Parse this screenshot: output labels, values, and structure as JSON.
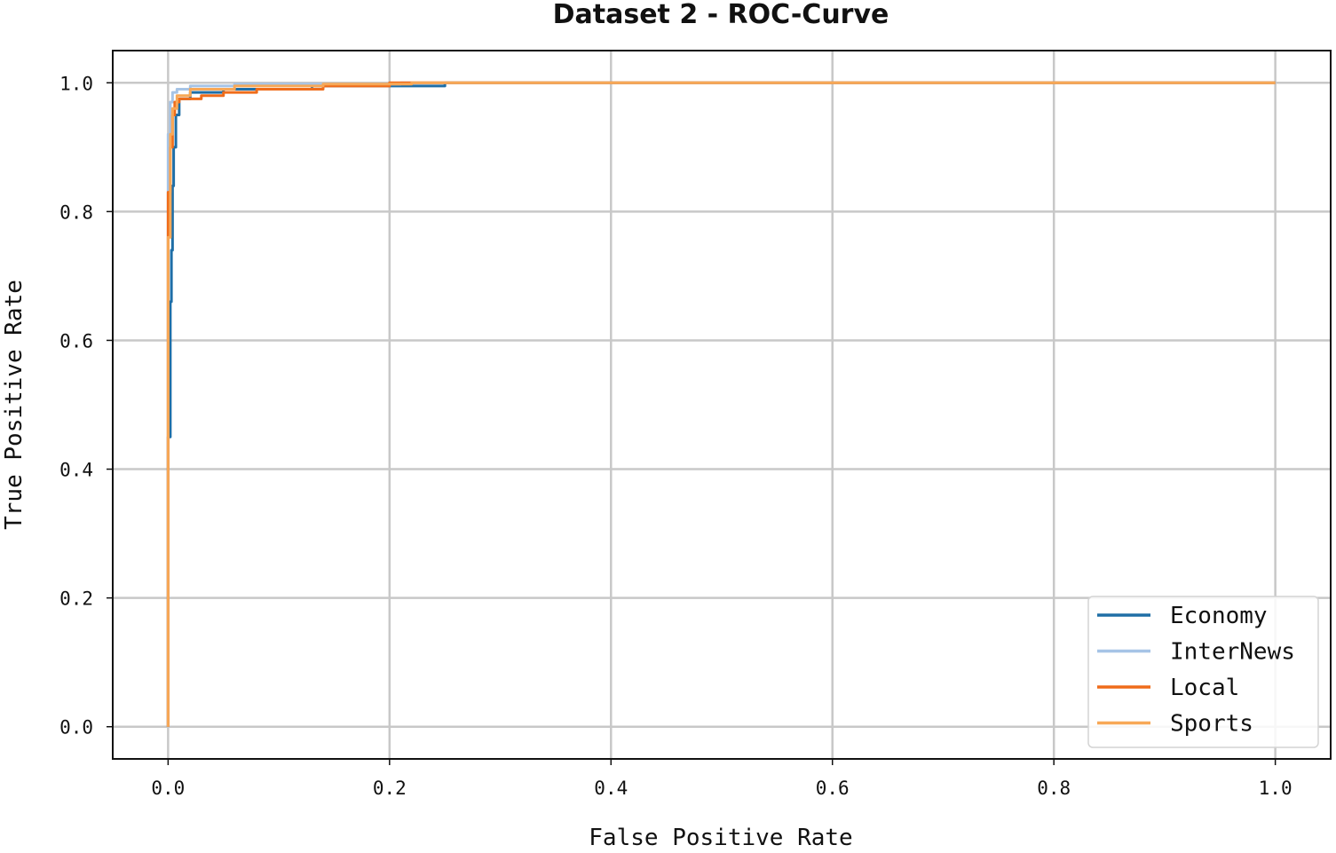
{
  "chart_data": {
    "type": "line",
    "title": "Dataset 2 - ROC-Curve",
    "xlabel": "False Positive Rate",
    "ylabel": "True Positive Rate",
    "xlim": [
      -0.05,
      1.05
    ],
    "ylim": [
      -0.05,
      1.05
    ],
    "x_ticks": [
      "0.0",
      "0.2",
      "0.4",
      "0.6",
      "0.8",
      "1.0"
    ],
    "y_ticks": [
      "0.0",
      "0.2",
      "0.4",
      "0.6",
      "0.8",
      "1.0"
    ],
    "grid": true,
    "legend_position": "lower-right",
    "series": [
      {
        "name": "Economy",
        "color": "#1f6ea6",
        "points": [
          [
            0.0,
            0.0
          ],
          [
            0.0,
            0.45
          ],
          [
            0.002,
            0.45
          ],
          [
            0.002,
            0.66
          ],
          [
            0.003,
            0.66
          ],
          [
            0.003,
            0.74
          ],
          [
            0.004,
            0.74
          ],
          [
            0.004,
            0.84
          ],
          [
            0.005,
            0.84
          ],
          [
            0.005,
            0.9
          ],
          [
            0.007,
            0.9
          ],
          [
            0.007,
            0.95
          ],
          [
            0.01,
            0.95
          ],
          [
            0.01,
            0.975
          ],
          [
            0.02,
            0.975
          ],
          [
            0.02,
            0.985
          ],
          [
            0.05,
            0.985
          ],
          [
            0.05,
            0.99
          ],
          [
            0.13,
            0.99
          ],
          [
            0.13,
            0.995
          ],
          [
            0.25,
            0.995
          ],
          [
            0.25,
            1.0
          ],
          [
            1.0,
            1.0
          ]
        ]
      },
      {
        "name": "InterNews",
        "color": "#a6c4e6",
        "points": [
          [
            0.0,
            0.0
          ],
          [
            0.0,
            0.92
          ],
          [
            0.002,
            0.92
          ],
          [
            0.002,
            0.97
          ],
          [
            0.004,
            0.97
          ],
          [
            0.004,
            0.985
          ],
          [
            0.008,
            0.985
          ],
          [
            0.008,
            0.99
          ],
          [
            0.02,
            0.99
          ],
          [
            0.02,
            0.995
          ],
          [
            0.06,
            0.995
          ],
          [
            0.06,
            0.998
          ],
          [
            0.21,
            0.998
          ],
          [
            0.21,
            1.0
          ],
          [
            1.0,
            1.0
          ]
        ]
      },
      {
        "name": "Local",
        "color": "#ef6c1a",
        "points": [
          [
            0.0,
            0.0
          ],
          [
            0.0,
            0.83
          ],
          [
            0.002,
            0.83
          ],
          [
            0.002,
            0.9
          ],
          [
            0.004,
            0.9
          ],
          [
            0.004,
            0.95
          ],
          [
            0.006,
            0.95
          ],
          [
            0.006,
            0.97
          ],
          [
            0.01,
            0.97
          ],
          [
            0.01,
            0.975
          ],
          [
            0.03,
            0.975
          ],
          [
            0.03,
            0.98
          ],
          [
            0.05,
            0.98
          ],
          [
            0.05,
            0.985
          ],
          [
            0.08,
            0.985
          ],
          [
            0.08,
            0.99
          ],
          [
            0.14,
            0.99
          ],
          [
            0.14,
            0.995
          ],
          [
            0.2,
            0.995
          ],
          [
            0.2,
            1.0
          ],
          [
            1.0,
            1.0
          ]
        ]
      },
      {
        "name": "Sports",
        "color": "#f7a857",
        "points": [
          [
            0.0,
            0.0
          ],
          [
            0.0,
            0.76
          ],
          [
            0.002,
            0.76
          ],
          [
            0.002,
            0.92
          ],
          [
            0.004,
            0.92
          ],
          [
            0.004,
            0.96
          ],
          [
            0.008,
            0.96
          ],
          [
            0.008,
            0.98
          ],
          [
            0.02,
            0.98
          ],
          [
            0.02,
            0.99
          ],
          [
            0.06,
            0.99
          ],
          [
            0.06,
            0.995
          ],
          [
            0.14,
            0.995
          ],
          [
            0.14,
            0.998
          ],
          [
            0.22,
            0.998
          ],
          [
            0.22,
            1.0
          ],
          [
            1.0,
            1.0
          ]
        ]
      }
    ]
  }
}
